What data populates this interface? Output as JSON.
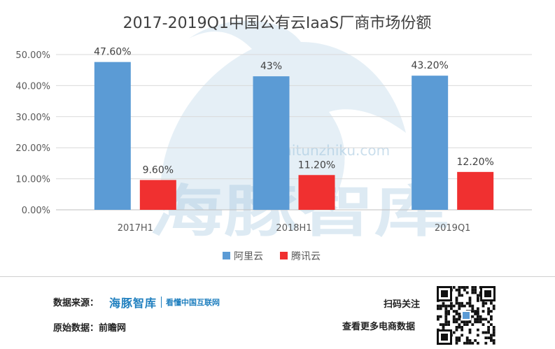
{
  "chart_data": {
    "type": "bar",
    "title": "2017-2019Q1中国公有云IaaS厂商市场份额",
    "categories": [
      "2017H1",
      "2018H1",
      "2019Q1"
    ],
    "series": [
      {
        "name": "阿里云",
        "color": "#5b9bd5",
        "values": [
          47.6,
          43,
          43.2
        ],
        "labels": [
          "47.60%",
          "43%",
          "43.20%"
        ]
      },
      {
        "name": "腾讯云",
        "color": "#f03030",
        "values": [
          9.6,
          11.2,
          12.2
        ],
        "labels": [
          "9.60%",
          "11.20%",
          "12.20%"
        ]
      }
    ],
    "yticks": [
      "0.00%",
      "10.00%",
      "20.00%",
      "30.00%",
      "40.00%",
      "50.00%"
    ],
    "ylim": [
      0,
      50
    ],
    "grid": true,
    "legend": "bottom"
  },
  "watermark": {
    "text": "海豚智库",
    "url": "haitunzhiku.com"
  },
  "footer": {
    "source_label": "数据来源：",
    "brand_name": "海豚智库",
    "brand_slogan": "看懂中国互联网",
    "original_label": "原始数据：前瞻网",
    "scan_label": "扫码关注",
    "more_label": "查看更多电商数据"
  }
}
